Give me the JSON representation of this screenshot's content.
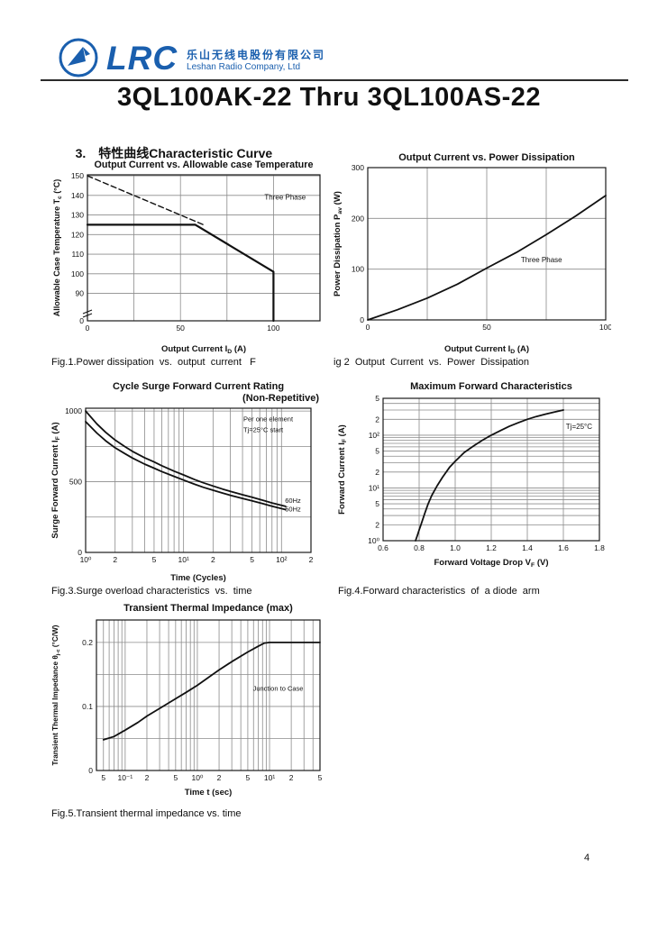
{
  "header": {
    "logo_text": "LRC",
    "company_cn": "乐山无线电股份有限公司",
    "company_en": "Leshan Radio Company, Ltd"
  },
  "title": "3QL100AK-22 Thru 3QL100AS-22",
  "section_heading": {
    "num": "3.",
    "text": "特性曲线Characteristic Curve"
  },
  "captions": {
    "fig1": "Fig.1.Power dissipation  vs.  output  current   F",
    "fig2": "ig 2  Output  Current  vs.  Power  Dissipation",
    "fig3": "Fig.3.Surge overload characteristics  vs.  time",
    "fig4": "Fig.4.Forward characteristics  of  a diode  arm",
    "fig5": "Fig.5.Transient thermal impedance vs. time"
  },
  "page_number": "4",
  "colors": {
    "brand_blue": "#1a5fae",
    "ink": "#111111",
    "grid": "#8b8b8b"
  },
  "chart_data": [
    {
      "id": "fig1",
      "type": "line",
      "title": "Output Current vs. Allowable case Temperature",
      "xlabel": "Output Current I~D~ (A)",
      "ylabel": "Allowable Case Temperature T~c~ (°C)",
      "x": {
        "type": "linear",
        "min": 0,
        "max": 125,
        "ticks": [
          {
            "v": 0,
            "l": "0"
          },
          {
            "v": 50,
            "l": "50"
          },
          {
            "v": 100,
            "l": "100"
          }
        ],
        "grid": [
          25,
          50,
          75,
          100,
          125
        ]
      },
      "y": {
        "type": "linear",
        "min": 76,
        "max": 150.5,
        "ticks": [
          {
            "v": 76,
            "l": "0"
          },
          {
            "v": 90,
            "l": "90"
          },
          {
            "v": 100,
            "l": "100"
          },
          {
            "v": 110,
            "l": "110"
          },
          {
            "v": 120,
            "l": "120"
          },
          {
            "v": 130,
            "l": "130"
          },
          {
            "v": 140,
            "l": "140"
          },
          {
            "v": 150,
            "l": "150"
          }
        ],
        "grid": [
          90,
          100,
          110,
          120,
          130,
          140,
          150
        ]
      },
      "ybreak": true,
      "series": [
        {
          "name": "single-phase-dashed",
          "dash": true,
          "width": 1.4,
          "points": [
            [
              0,
              150
            ],
            [
              63,
              124.8
            ]
          ]
        },
        {
          "name": "three-phase-solid",
          "width": 2.2,
          "points": [
            [
              0,
              125
            ],
            [
              58,
              125
            ],
            [
              100,
              101
            ],
            [
              100,
              76
            ]
          ]
        }
      ],
      "ann": [
        {
          "text": "Three Phase",
          "fx": 0.85,
          "fy": 0.17,
          "size": 8
        }
      ]
    },
    {
      "id": "fig2",
      "type": "line",
      "title": "Output Current vs. Power Dissipation",
      "xlabel": "Output Current I~D~ (A)",
      "ylabel": "Power Dissipation P~av~ (W)",
      "x": {
        "type": "linear",
        "min": 0,
        "max": 100,
        "ticks": [
          {
            "v": 0,
            "l": "0"
          },
          {
            "v": 50,
            "l": "50"
          },
          {
            "v": 100,
            "l": "100"
          }
        ],
        "grid": [
          25,
          50,
          75
        ]
      },
      "y": {
        "type": "linear",
        "min": 0,
        "max": 300,
        "ticks": [
          {
            "v": 0,
            "l": "0"
          },
          {
            "v": 100,
            "l": "100"
          },
          {
            "v": 200,
            "l": "200"
          },
          {
            "v": 300,
            "l": "300"
          }
        ],
        "grid": [
          100,
          200
        ]
      },
      "series": [
        {
          "name": "power-dissipation",
          "width": 1.8,
          "points": [
            [
              0,
              0
            ],
            [
              12.5,
              20
            ],
            [
              25,
              43
            ],
            [
              37.5,
              70
            ],
            [
              50,
              102
            ],
            [
              62.5,
              133
            ],
            [
              75,
              168
            ],
            [
              87.5,
              205
            ],
            [
              100,
              245
            ]
          ]
        }
      ],
      "ann": [
        {
          "text": "Three Phase",
          "fx": 0.73,
          "fy": 0.62,
          "size": 8
        }
      ]
    },
    {
      "id": "fig3",
      "type": "line",
      "title": "Cycle Surge Forward Current Rating",
      "title2": "(Non-Repetitive)",
      "xlabel": "Time (Cycles)",
      "ylabel": "Surge Forward Current I~F~ (A)",
      "x": {
        "type": "log",
        "min": 1,
        "max": 200,
        "ticks": [
          {
            "v": 1,
            "l": "10⁰"
          },
          {
            "v": 2,
            "l": "2"
          },
          {
            "v": 5,
            "l": "5"
          },
          {
            "v": 10,
            "l": "10¹"
          },
          {
            "v": 20,
            "l": "2"
          },
          {
            "v": 50,
            "l": "5"
          },
          {
            "v": 100,
            "l": "10²"
          },
          {
            "v": 200,
            "l": "2"
          }
        ],
        "grid": [
          2,
          3,
          4,
          5,
          6,
          7,
          8,
          9,
          10,
          20,
          30,
          40,
          50,
          60,
          70,
          80,
          90,
          100
        ]
      },
      "y": {
        "type": "linear",
        "min": 0,
        "max": 1020,
        "ticks": [
          {
            "v": 0,
            "l": "0"
          },
          {
            "v": 500,
            "l": "500"
          },
          {
            "v": 1000,
            "l": "1000"
          }
        ],
        "grid": [
          250,
          500,
          750,
          1000
        ]
      },
      "series": [
        {
          "name": "surge-60hz",
          "width": 1.8,
          "points": [
            [
              1,
              1000
            ],
            [
              1.3,
              910
            ],
            [
              1.6,
              850
            ],
            [
              2,
              795
            ],
            [
              2.5,
              750
            ],
            [
              3,
              715
            ],
            [
              4,
              670
            ],
            [
              5,
              640
            ],
            [
              6,
              613
            ],
            [
              8,
              575
            ],
            [
              10,
              548
            ],
            [
              13,
              515
            ],
            [
              16,
              492
            ],
            [
              20,
              470
            ],
            [
              25,
              448
            ],
            [
              30,
              432
            ],
            [
              40,
              408
            ],
            [
              50,
              390
            ],
            [
              65,
              368
            ],
            [
              80,
              350
            ],
            [
              100,
              333
            ],
            [
              110,
              326
            ]
          ]
        },
        {
          "name": "surge-50hz",
          "width": 1.8,
          "points": [
            [
              1,
              925
            ],
            [
              1.3,
              845
            ],
            [
              1.6,
              790
            ],
            [
              2,
              740
            ],
            [
              2.5,
              700
            ],
            [
              3,
              668
            ],
            [
              4,
              625
            ],
            [
              5,
              596
            ],
            [
              6,
              572
            ],
            [
              8,
              538
            ],
            [
              10,
              512
            ],
            [
              13,
              482
            ],
            [
              16,
              460
            ],
            [
              20,
              440
            ],
            [
              25,
              420
            ],
            [
              30,
              404
            ],
            [
              40,
              382
            ],
            [
              50,
              365
            ],
            [
              65,
              344
            ],
            [
              80,
              327
            ],
            [
              100,
              310
            ],
            [
              110,
              303
            ]
          ]
        }
      ],
      "ann": [
        {
          "text": "Per one element",
          "fx": 0.7,
          "fy": 0.09,
          "size": 7.5,
          "anchor": "start"
        },
        {
          "text": "Tj=25°C  start",
          "fx": 0.7,
          "fy": 0.165,
          "size": 7.5,
          "anchor": "start"
        },
        {
          "text": "60Hz",
          "fx": 0.885,
          "fy": 0.655,
          "size": 7.5,
          "anchor": "start"
        },
        {
          "text": "50Hz",
          "fx": 0.885,
          "fy": 0.715,
          "size": 7.5,
          "anchor": "start"
        }
      ]
    },
    {
      "id": "fig4",
      "type": "line",
      "title": "Maximum Forward Characteristics",
      "xlabel": "Forward Voltage Drop V~F~ (V)",
      "ylabel": "Forward Current  I~F~ (A)",
      "x": {
        "type": "linear",
        "min": 0.6,
        "max": 1.8,
        "ticks": [
          {
            "v": 0.6,
            "l": "0.6"
          },
          {
            "v": 0.8,
            "l": "0.8"
          },
          {
            "v": 1.0,
            "l": "1.0"
          },
          {
            "v": 1.2,
            "l": "1.2"
          },
          {
            "v": 1.4,
            "l": "1.4"
          },
          {
            "v": 1.6,
            "l": "1.6"
          },
          {
            "v": 1.8,
            "l": "1.8"
          }
        ],
        "grid": [
          0.8,
          1.0,
          1.2,
          1.4,
          1.6
        ]
      },
      "y": {
        "type": "log",
        "min": 1,
        "max": 500,
        "ticks": [
          {
            "v": 1,
            "l": "10⁰"
          },
          {
            "v": 2,
            "l": "2"
          },
          {
            "v": 5,
            "l": "5"
          },
          {
            "v": 10,
            "l": "10¹"
          },
          {
            "v": 20,
            "l": "2"
          },
          {
            "v": 50,
            "l": "5"
          },
          {
            "v": 100,
            "l": "10²"
          },
          {
            "v": 200,
            "l": "2"
          },
          {
            "v": 500,
            "l": "5"
          }
        ],
        "grid": [
          2,
          3,
          4,
          5,
          6,
          7,
          8,
          9,
          10,
          20,
          30,
          40,
          50,
          60,
          70,
          80,
          90,
          100,
          200,
          300,
          400,
          500
        ]
      },
      "series": [
        {
          "name": "forward-vi",
          "width": 1.8,
          "points": [
            [
              0.78,
              1
            ],
            [
              0.79,
              1.25
            ],
            [
              0.8,
              1.6
            ],
            [
              0.81,
              2
            ],
            [
              0.83,
              3.2
            ],
            [
              0.85,
              5
            ],
            [
              0.87,
              7.2
            ],
            [
              0.9,
              11
            ],
            [
              0.93,
              16
            ],
            [
              0.97,
              25
            ],
            [
              1.0,
              32
            ],
            [
              1.05,
              47
            ],
            [
              1.1,
              62
            ],
            [
              1.15,
              80
            ],
            [
              1.2,
              100
            ],
            [
              1.25,
              122
            ],
            [
              1.3,
              147
            ],
            [
              1.35,
              172
            ],
            [
              1.4,
              200
            ],
            [
              1.45,
              226
            ],
            [
              1.5,
              250
            ],
            [
              1.55,
              275
            ],
            [
              1.6,
              300
            ]
          ]
        }
      ],
      "ann": [
        {
          "text": "Tj=25°C",
          "fx": 0.845,
          "fy": 0.215,
          "size": 8,
          "anchor": "start"
        }
      ]
    },
    {
      "id": "fig5",
      "type": "line",
      "title": "Transient Thermal Impedance (max)",
      "xlabel": "Time t (sec)",
      "ylabel": "Transient Thermal Impedance θ~j-c~ (°C/W)",
      "x": {
        "type": "log",
        "min": 0.04,
        "max": 50,
        "ticks": [
          {
            "v": 0.05,
            "l": "5"
          },
          {
            "v": 0.1,
            "l": "10⁻¹"
          },
          {
            "v": 0.2,
            "l": "2"
          },
          {
            "v": 0.5,
            "l": "5"
          },
          {
            "v": 1,
            "l": "10⁰"
          },
          {
            "v": 2,
            "l": "2"
          },
          {
            "v": 5,
            "l": "5"
          },
          {
            "v": 10,
            "l": "10¹"
          },
          {
            "v": 20,
            "l": "2"
          },
          {
            "v": 50,
            "l": "5"
          }
        ],
        "grid": [
          0.05,
          0.06,
          0.07,
          0.08,
          0.09,
          0.1,
          0.2,
          0.3,
          0.4,
          0.5,
          0.6,
          0.7,
          0.8,
          0.9,
          1,
          2,
          3,
          4,
          5,
          6,
          7,
          8,
          9,
          10,
          20,
          30,
          40
        ]
      },
      "y": {
        "type": "linear",
        "min": 0,
        "max": 0.235,
        "ticks": [
          {
            "v": 0,
            "l": "0"
          },
          {
            "v": 0.1,
            "l": "0.1"
          },
          {
            "v": 0.2,
            "l": "0.2"
          }
        ],
        "grid": [
          0.05,
          0.1,
          0.15,
          0.2
        ]
      },
      "series": [
        {
          "name": "thermal-impedance",
          "width": 1.8,
          "points": [
            [
              0.05,
              0.048
            ],
            [
              0.07,
              0.053
            ],
            [
              0.1,
              0.063
            ],
            [
              0.15,
              0.075
            ],
            [
              0.2,
              0.085
            ],
            [
              0.3,
              0.097
            ],
            [
              0.5,
              0.112
            ],
            [
              0.7,
              0.122
            ],
            [
              1,
              0.133
            ],
            [
              1.5,
              0.147
            ],
            [
              2,
              0.157
            ],
            [
              3,
              0.17
            ],
            [
              5,
              0.185
            ],
            [
              7,
              0.194
            ],
            [
              8.5,
              0.199
            ],
            [
              10,
              0.2
            ],
            [
              20,
              0.2
            ],
            [
              50,
              0.2
            ]
          ]
        }
      ],
      "ann": [
        {
          "text": "Junction to Case",
          "fx": 0.7,
          "fy": 0.47,
          "size": 7.5,
          "anchor": "start"
        }
      ]
    }
  ]
}
